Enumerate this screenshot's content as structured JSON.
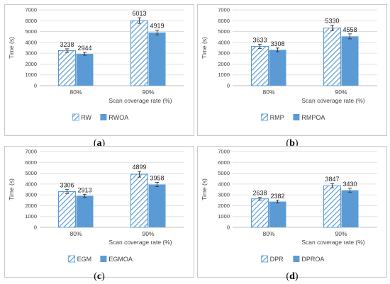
{
  "colors": {
    "bar": "#5b9bd5",
    "hatch": "#5b9bd5",
    "grid": "#d9d9d9",
    "frame": "#c8c8c8",
    "text": "#404040",
    "error": "#333333"
  },
  "chart_data": [
    {
      "type": "bar",
      "caption": "a",
      "xlabel": "Scan coverage rate (%)",
      "ylabel": "Time (s)",
      "ylim": [
        0,
        7000
      ],
      "yticks": [
        0,
        1000,
        2000,
        3000,
        4000,
        5000,
        6000,
        7000
      ],
      "grid": true,
      "legend": "bottom",
      "categories": [
        "80%",
        "90%"
      ],
      "series": [
        {
          "name": "RW",
          "pattern": "hatched",
          "values": [
            3238,
            6013
          ],
          "errors": [
            170,
            260
          ]
        },
        {
          "name": "RWOA",
          "pattern": "solid",
          "values": [
            2944,
            4919
          ],
          "errors": [
            130,
            220
          ]
        }
      ]
    },
    {
      "type": "bar",
      "caption": "b",
      "xlabel": "Scan coverage rate (%)",
      "ylabel": "Time (s)",
      "ylim": [
        0,
        7000
      ],
      "yticks": [
        0,
        1000,
        2000,
        3000,
        4000,
        5000,
        6000,
        7000
      ],
      "grid": true,
      "legend": "bottom",
      "categories": [
        "80%",
        "90%"
      ],
      "series": [
        {
          "name": "RMP",
          "pattern": "hatched",
          "values": [
            3633,
            5330
          ],
          "errors": [
            190,
            260
          ]
        },
        {
          "name": "RMPOA",
          "pattern": "solid",
          "values": [
            3308,
            4558
          ],
          "errors": [
            170,
            230
          ]
        }
      ]
    },
    {
      "type": "bar",
      "caption": "c",
      "xlabel": "Scan coverage rate (%)",
      "ylabel": "Time (s)",
      "ylim": [
        0,
        7000
      ],
      "yticks": [
        0,
        1000,
        2000,
        3000,
        4000,
        5000,
        6000,
        7000
      ],
      "grid": true,
      "legend": "bottom",
      "categories": [
        "80%",
        "90%"
      ],
      "series": [
        {
          "name": "EGM",
          "pattern": "hatched",
          "values": [
            3306,
            4899
          ],
          "errors": [
            180,
            260
          ]
        },
        {
          "name": "EGMOA",
          "pattern": "solid",
          "values": [
            2913,
            3958
          ],
          "errors": [
            140,
            190
          ]
        }
      ]
    },
    {
      "type": "bar",
      "caption": "d",
      "xlabel": "Scan coverage rate (%)",
      "ylabel": "Time (s)",
      "ylim": [
        0,
        7000
      ],
      "yticks": [
        0,
        1000,
        2000,
        3000,
        4000,
        5000,
        6000,
        7000
      ],
      "grid": true,
      "legend": "bottom",
      "categories": [
        "80%",
        "90%"
      ],
      "series": [
        {
          "name": "DPR",
          "pattern": "hatched",
          "values": [
            2638,
            3847
          ],
          "errors": [
            130,
            200
          ]
        },
        {
          "name": "DPROA",
          "pattern": "solid",
          "values": [
            2382,
            3430
          ],
          "errors": [
            120,
            180
          ]
        }
      ]
    }
  ]
}
